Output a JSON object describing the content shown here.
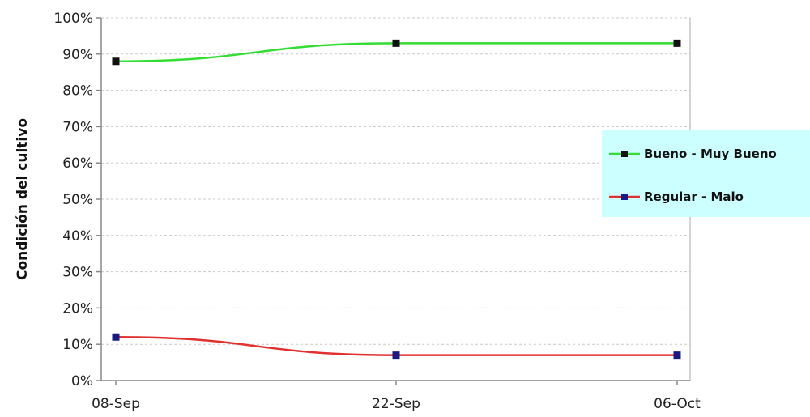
{
  "chart_data": {
    "type": "line",
    "categories": [
      "08-Sep",
      "22-Sep",
      "06-Oct"
    ],
    "x": [
      0,
      14,
      28
    ],
    "series": [
      {
        "name": "Bueno - Muy Bueno",
        "values": [
          88,
          93,
          93
        ],
        "color": "#33dd33",
        "marker_color": "#111111"
      },
      {
        "name": "Regular - Malo",
        "values": [
          12,
          7,
          7
        ],
        "color": "#e03030",
        "marker_color": "#1a1a80"
      }
    ],
    "title": "",
    "xlabel": "",
    "ylabel": "Condición del cultivo",
    "ylim": [
      0,
      100
    ],
    "yticks": [
      0,
      10,
      20,
      30,
      40,
      50,
      60,
      70,
      80,
      90,
      100
    ],
    "ytick_labels": [
      "0%",
      "10%",
      "20%",
      "30%",
      "40%",
      "50%",
      "60%",
      "70%",
      "80%",
      "90%",
      "100%"
    ],
    "grid": true,
    "legend_position": "right",
    "legend_background": "#ccffff"
  }
}
